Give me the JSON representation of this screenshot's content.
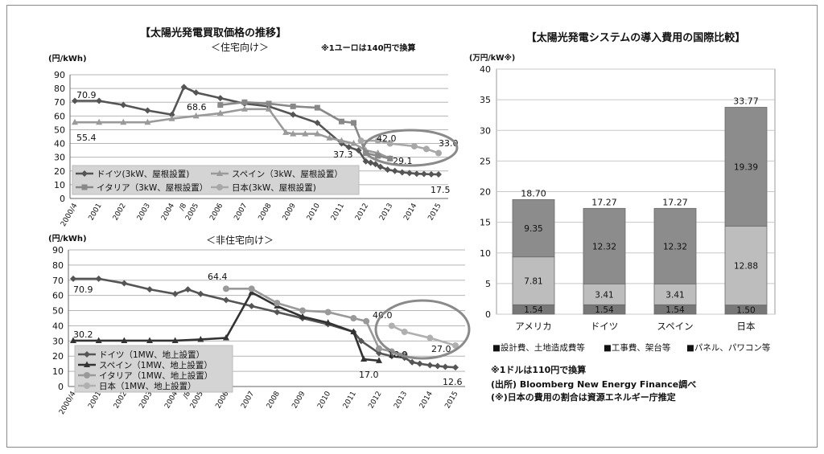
{
  "chart_data": [
    {
      "type": "line",
      "title": "【太陽光発電買取価格の推移】",
      "subtitle": "＜住宅向け＞",
      "note": "※1ユーロは140円で換算",
      "ylabel": "(円/kWh)",
      "ylim": [
        0,
        90
      ],
      "yticks": [
        0,
        10,
        20,
        30,
        40,
        50,
        60,
        70,
        80,
        90
      ],
      "x_labels": [
        "2000/4",
        "2001",
        "2002",
        "2003",
        "2004",
        "/8",
        "2005",
        "2006",
        "2007",
        "2008",
        "2009",
        "2010",
        "2011",
        "2012",
        "2013",
        "2014",
        "2015"
      ],
      "series": [
        {
          "name": "ドイツ(3kW、屋根設置)",
          "color": "#555555",
          "marker": "diamond",
          "points": [
            [
              0,
              71
            ],
            [
              1,
              71
            ],
            [
              2,
              68
            ],
            [
              3,
              64
            ],
            [
              4,
              61
            ],
            [
              4.5,
              81
            ],
            [
              5,
              77
            ],
            [
              6,
              73
            ],
            [
              7,
              69
            ],
            [
              8,
              67
            ],
            [
              9,
              61
            ],
            [
              10,
              55
            ],
            [
              11,
              40
            ],
            [
              11.3,
              37.3
            ],
            [
              11.7,
              35
            ],
            [
              12,
              27
            ],
            [
              12.2,
              26
            ],
            [
              12.4,
              25
            ],
            [
              12.6,
              23
            ],
            [
              12.9,
              21
            ],
            [
              13.2,
              20
            ],
            [
              13.5,
              19
            ],
            [
              13.8,
              18.5
            ],
            [
              14.1,
              18
            ],
            [
              14.4,
              17.8
            ],
            [
              14.7,
              17.6
            ],
            [
              15,
              17.5
            ]
          ]
        },
        {
          "name": "スペイン（3kW、屋根設置）",
          "color": "#9a9a9a",
          "marker": "triangle",
          "points": [
            [
              0,
              55.4
            ],
            [
              1,
              55.4
            ],
            [
              2,
              55.4
            ],
            [
              3,
              55.4
            ],
            [
              4,
              58
            ],
            [
              5,
              60
            ],
            [
              6,
              62
            ],
            [
              7,
              65
            ],
            [
              8,
              65
            ],
            [
              8.7,
              48
            ],
            [
              9,
              47
            ],
            [
              9.5,
              47
            ],
            [
              10,
              47
            ],
            [
              10.5,
              44
            ],
            [
              11,
              42
            ],
            [
              11.5,
              40
            ],
            [
              12,
              35
            ],
            [
              12.5,
              33
            ],
            [
              13,
              29.1
            ]
          ]
        },
        {
          "name": "イタリア（3kW、屋根設置）",
          "color": "#888888",
          "marker": "square",
          "points": [
            [
              6,
              68
            ],
            [
              7,
              70
            ],
            [
              8,
              69
            ],
            [
              9,
              67
            ],
            [
              10,
              66
            ],
            [
              11,
              56
            ],
            [
              11.5,
              55
            ],
            [
              12,
              33
            ],
            [
              12.5,
              31
            ],
            [
              13,
              29
            ]
          ]
        },
        {
          "name": "日本(3kW、屋根設置)",
          "color": "#a8a8a8",
          "marker": "circle",
          "points": [
            [
              11.8,
              42
            ],
            [
              12.5,
              42
            ],
            [
              13,
              40
            ],
            [
              14,
              38
            ],
            [
              14.5,
              36
            ],
            [
              15,
              33
            ]
          ]
        }
      ],
      "annotations": [
        "70.9",
        "55.4",
        "68.6",
        "37.3",
        "42.0",
        "29.1",
        "33.0",
        "17.5"
      ]
    },
    {
      "type": "line",
      "subtitle": "＜非住宅向け＞",
      "ylabel": "(円/kWh)",
      "ylim": [
        0,
        90
      ],
      "yticks": [
        0,
        10,
        20,
        30,
        40,
        50,
        60,
        70,
        80,
        90
      ],
      "x_labels": [
        "2000/4",
        "2001",
        "2002",
        "2003",
        "2004",
        "/8",
        "2005",
        "2006",
        "2007",
        "2008",
        "2009",
        "2010",
        "2011",
        "2012",
        "2013",
        "2014",
        "2015"
      ],
      "series": [
        {
          "name": "ドイツ（1MW、地上設置）",
          "color": "#555555",
          "marker": "diamond",
          "points": [
            [
              0,
              71
            ],
            [
              1,
              71
            ],
            [
              2,
              68
            ],
            [
              3,
              64
            ],
            [
              4,
              61
            ],
            [
              4.5,
              64
            ],
            [
              5,
              61
            ],
            [
              6,
              57
            ],
            [
              7,
              53
            ],
            [
              8,
              49
            ],
            [
              9,
              45
            ],
            [
              10,
              41
            ],
            [
              11,
              36
            ],
            [
              11.3,
              30
            ],
            [
              12,
              22
            ],
            [
              12.5,
              20
            ],
            [
              13,
              18.9
            ],
            [
              13.3,
              16
            ],
            [
              13.6,
              15
            ],
            [
              14,
              14
            ],
            [
              14.3,
              13.5
            ],
            [
              14.6,
              13
            ],
            [
              15,
              12.6
            ]
          ]
        },
        {
          "name": "スペイン（1MW、地上設置）",
          "color": "#333333",
          "marker": "triangle",
          "points": [
            [
              0,
              30.2
            ],
            [
              1,
              30.2
            ],
            [
              2,
              30.2
            ],
            [
              3,
              30.2
            ],
            [
              4,
              30.2
            ],
            [
              5,
              31
            ],
            [
              6,
              32
            ],
            [
              7,
              62
            ],
            [
              8,
              53
            ],
            [
              9,
              46
            ],
            [
              10,
              42
            ],
            [
              11,
              36
            ],
            [
              11.4,
              18
            ],
            [
              12,
              17
            ]
          ]
        },
        {
          "name": "イタリア（1MW、地上設置）",
          "color": "#999999",
          "marker": "circle",
          "points": [
            [
              6,
              64.4
            ],
            [
              7,
              64.4
            ],
            [
              8,
              55
            ],
            [
              9,
              50
            ],
            [
              10,
              49
            ],
            [
              11,
              45
            ],
            [
              11.5,
              43
            ],
            [
              12,
              25
            ],
            [
              12.5,
              23
            ],
            [
              13,
              21
            ]
          ]
        },
        {
          "name": "日本（1MW、地上設置）",
          "color": "#b0b0b0",
          "marker": "circle",
          "points": [
            [
              12.5,
              40
            ],
            [
              13,
              36
            ],
            [
              14,
              32
            ],
            [
              15,
              27
            ]
          ]
        }
      ],
      "annotations": [
        "70.9",
        "64.4",
        "30.2",
        "40.0",
        "18.9",
        "27.0",
        "17.0",
        "12.6"
      ]
    },
    {
      "type": "bar",
      "stacked": true,
      "title": "【太陽光発電システムの導入費用の国際比較】",
      "ylabel": "(万円/kW※)",
      "ylim": [
        0,
        40
      ],
      "yticks": [
        0,
        5,
        10,
        15,
        20,
        25,
        30,
        35,
        40
      ],
      "categories": [
        "アメリカ",
        "ドイツ",
        "スペイン",
        "日本"
      ],
      "totals": [
        "18.70",
        "17.27",
        "17.27",
        "33.77"
      ],
      "series": [
        {
          "name": "パネル、パワコン等",
          "color": "#777777",
          "values": [
            1.54,
            1.54,
            1.54,
            1.5
          ],
          "labels": [
            "1.54",
            "1.54",
            "1.54",
            "1.50"
          ]
        },
        {
          "name": "工事費、架台等",
          "color": "#bdbdbd",
          "values": [
            7.81,
            3.41,
            3.41,
            12.88
          ],
          "labels": [
            "7.81",
            "3.41",
            "3.41",
            "12.88"
          ]
        },
        {
          "name": "設計費、土地造成費等",
          "color": "#8c8c8c",
          "values": [
            9.35,
            12.32,
            12.32,
            19.39
          ],
          "labels": [
            "9.35",
            "12.32",
            "12.32",
            "19.39"
          ]
        }
      ],
      "legend": [
        "■設計費、土地造成費等",
        "■工事費、架台等",
        "■パネル、パワコン等"
      ],
      "notes": [
        "※1ドルは110円で換算",
        "(出所) Bloomberg New Energy Finance調べ",
        "(※)日本の費用の割合は資源エネルギー庁推定"
      ]
    }
  ]
}
